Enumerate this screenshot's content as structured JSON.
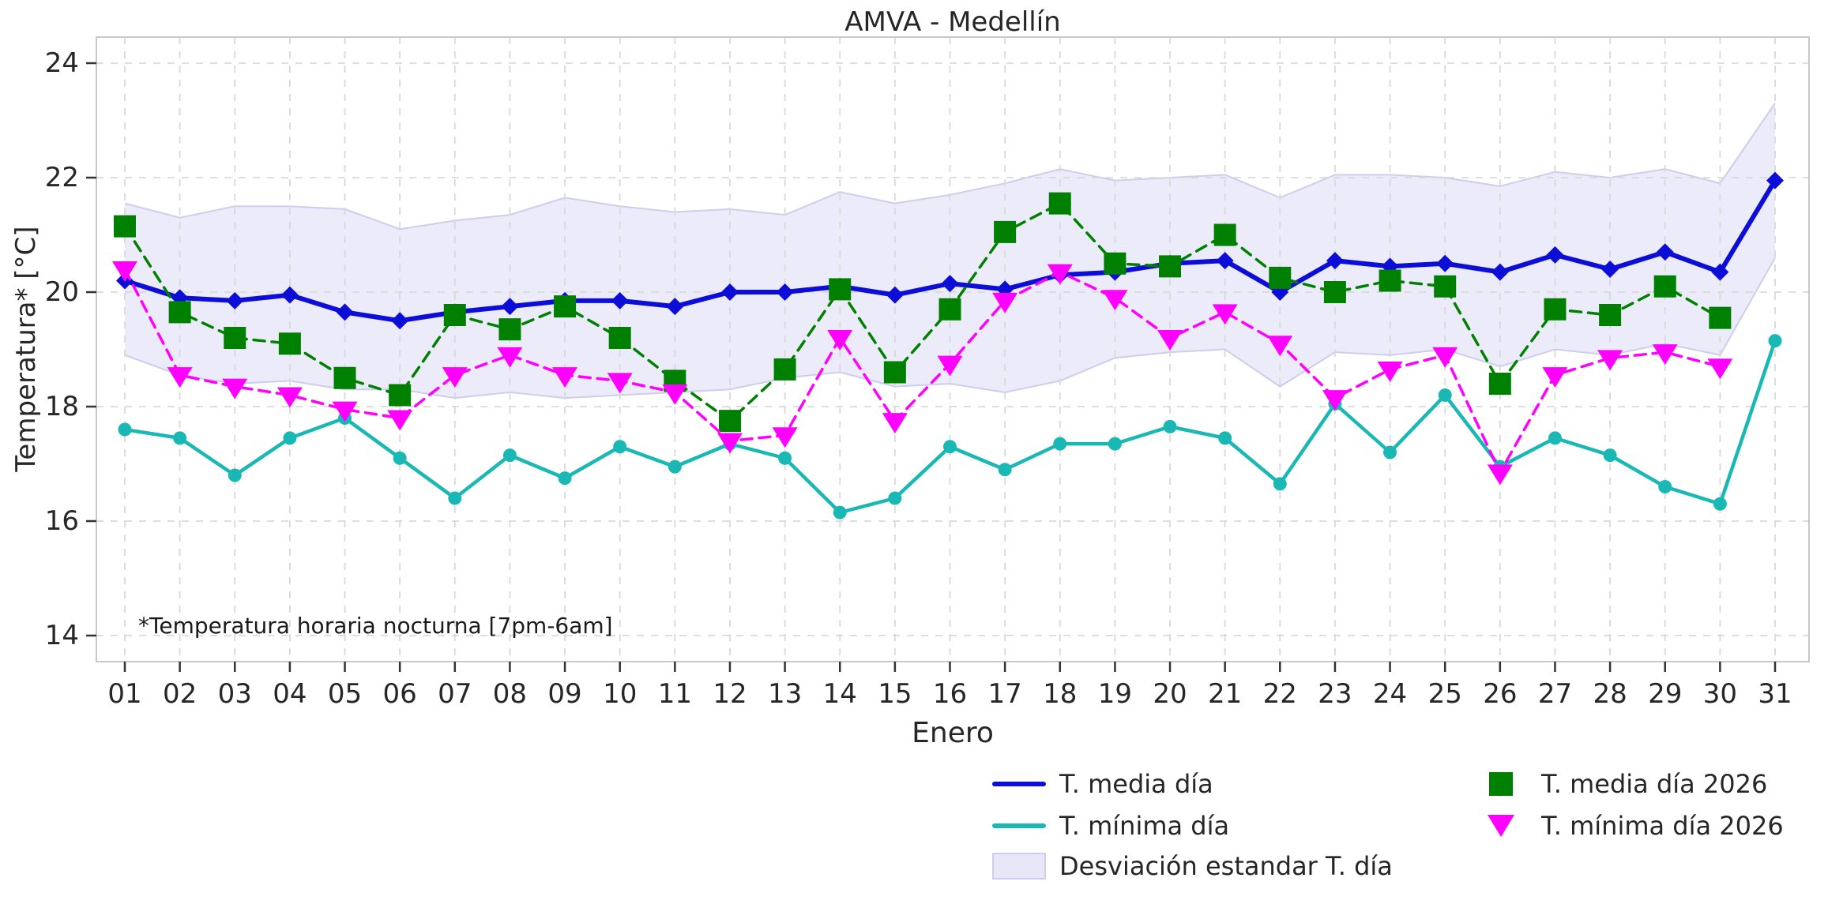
{
  "chart_data": {
    "type": "line",
    "title": "AMVA - Medellín",
    "xlabel": "Enero",
    "ylabel": "Temperatura* [°C]",
    "annotation": "*Temperatura horaria nocturna [7pm-6am]",
    "ylim": [
      13.55,
      24.45
    ],
    "yticks": [
      14,
      16,
      18,
      20,
      22,
      24
    ],
    "grid": true,
    "legend_position": "below-center",
    "background": "#ffffff",
    "grid_color": "#d9d9d9",
    "spine_color": "#c8c8c8",
    "tick_color": "#333333",
    "text_color": "#262626",
    "categories": [
      "01",
      "02",
      "03",
      "04",
      "05",
      "06",
      "07",
      "08",
      "09",
      "10",
      "11",
      "12",
      "13",
      "14",
      "15",
      "16",
      "17",
      "18",
      "19",
      "20",
      "21",
      "22",
      "23",
      "24",
      "25",
      "26",
      "27",
      "28",
      "29",
      "30",
      "31"
    ],
    "series": [
      {
        "name": "T. media día",
        "type": "line",
        "style": "solid",
        "marker": "diamond",
        "color": "#0d0dd8",
        "values": [
          20.2,
          19.9,
          19.85,
          19.95,
          19.65,
          19.5,
          19.65,
          19.75,
          19.85,
          19.85,
          19.75,
          20.0,
          20.0,
          20.1,
          19.95,
          20.15,
          20.05,
          20.3,
          20.35,
          20.5,
          20.55,
          20.0,
          20.55,
          20.45,
          20.5,
          20.35,
          20.65,
          20.4,
          20.7,
          20.35,
          21.95
        ]
      },
      {
        "name": "T. mínima día",
        "type": "line",
        "style": "solid",
        "marker": "circle",
        "color": "#1ab8b4",
        "values": [
          17.6,
          17.45,
          16.8,
          17.45,
          17.8,
          17.1,
          16.4,
          17.15,
          16.75,
          17.3,
          16.95,
          17.35,
          17.1,
          16.15,
          16.4,
          17.3,
          16.9,
          17.35,
          17.35,
          17.65,
          17.45,
          16.65,
          18.05,
          17.2,
          18.2,
          16.95,
          17.45,
          17.15,
          16.6,
          16.3,
          19.15
        ]
      },
      {
        "name": "Desviación estandar T. día",
        "type": "band",
        "fill_color": "#e7e7f8",
        "edge_color": "#cdcdee",
        "upper": [
          21.55,
          21.3,
          21.5,
          21.5,
          21.45,
          21.1,
          21.25,
          21.35,
          21.65,
          21.5,
          21.4,
          21.45,
          21.35,
          21.75,
          21.55,
          21.7,
          21.9,
          22.15,
          21.95,
          22.0,
          22.05,
          21.65,
          22.05,
          22.05,
          22.0,
          21.85,
          22.1,
          22.0,
          22.15,
          21.9,
          23.3
        ],
        "lower": [
          18.9,
          18.55,
          18.4,
          18.45,
          18.3,
          18.3,
          18.15,
          18.25,
          18.15,
          18.2,
          18.25,
          18.3,
          18.5,
          18.6,
          18.35,
          18.4,
          18.25,
          18.45,
          18.85,
          18.95,
          19.0,
          18.35,
          18.95,
          18.9,
          19.0,
          18.7,
          19.0,
          18.9,
          19.1,
          18.9,
          20.6
        ]
      },
      {
        "name": "T. media día 2026",
        "type": "line",
        "style": "dashed",
        "marker": "square",
        "color": "#008000",
        "values": [
          21.15,
          19.65,
          19.2,
          19.1,
          18.5,
          18.2,
          19.6,
          19.35,
          19.75,
          19.2,
          18.45,
          17.75,
          18.65,
          20.05,
          18.6,
          19.7,
          21.05,
          21.55,
          20.5,
          20.45,
          21.0,
          20.25,
          20.0,
          20.2,
          20.1,
          18.4,
          19.7,
          19.6,
          20.1,
          19.55
        ]
      },
      {
        "name": "T. mínima día 2026",
        "type": "line",
        "style": "dashed",
        "marker": "triangle-down",
        "color": "#ff00ff",
        "values": [
          20.4,
          18.55,
          18.35,
          18.2,
          17.95,
          17.8,
          18.55,
          18.9,
          18.55,
          18.45,
          18.25,
          17.4,
          17.5,
          19.2,
          17.75,
          18.75,
          19.85,
          20.35,
          19.9,
          19.2,
          19.65,
          19.1,
          18.15,
          18.65,
          18.9,
          16.85,
          18.55,
          18.85,
          18.95,
          18.7
        ]
      }
    ]
  }
}
